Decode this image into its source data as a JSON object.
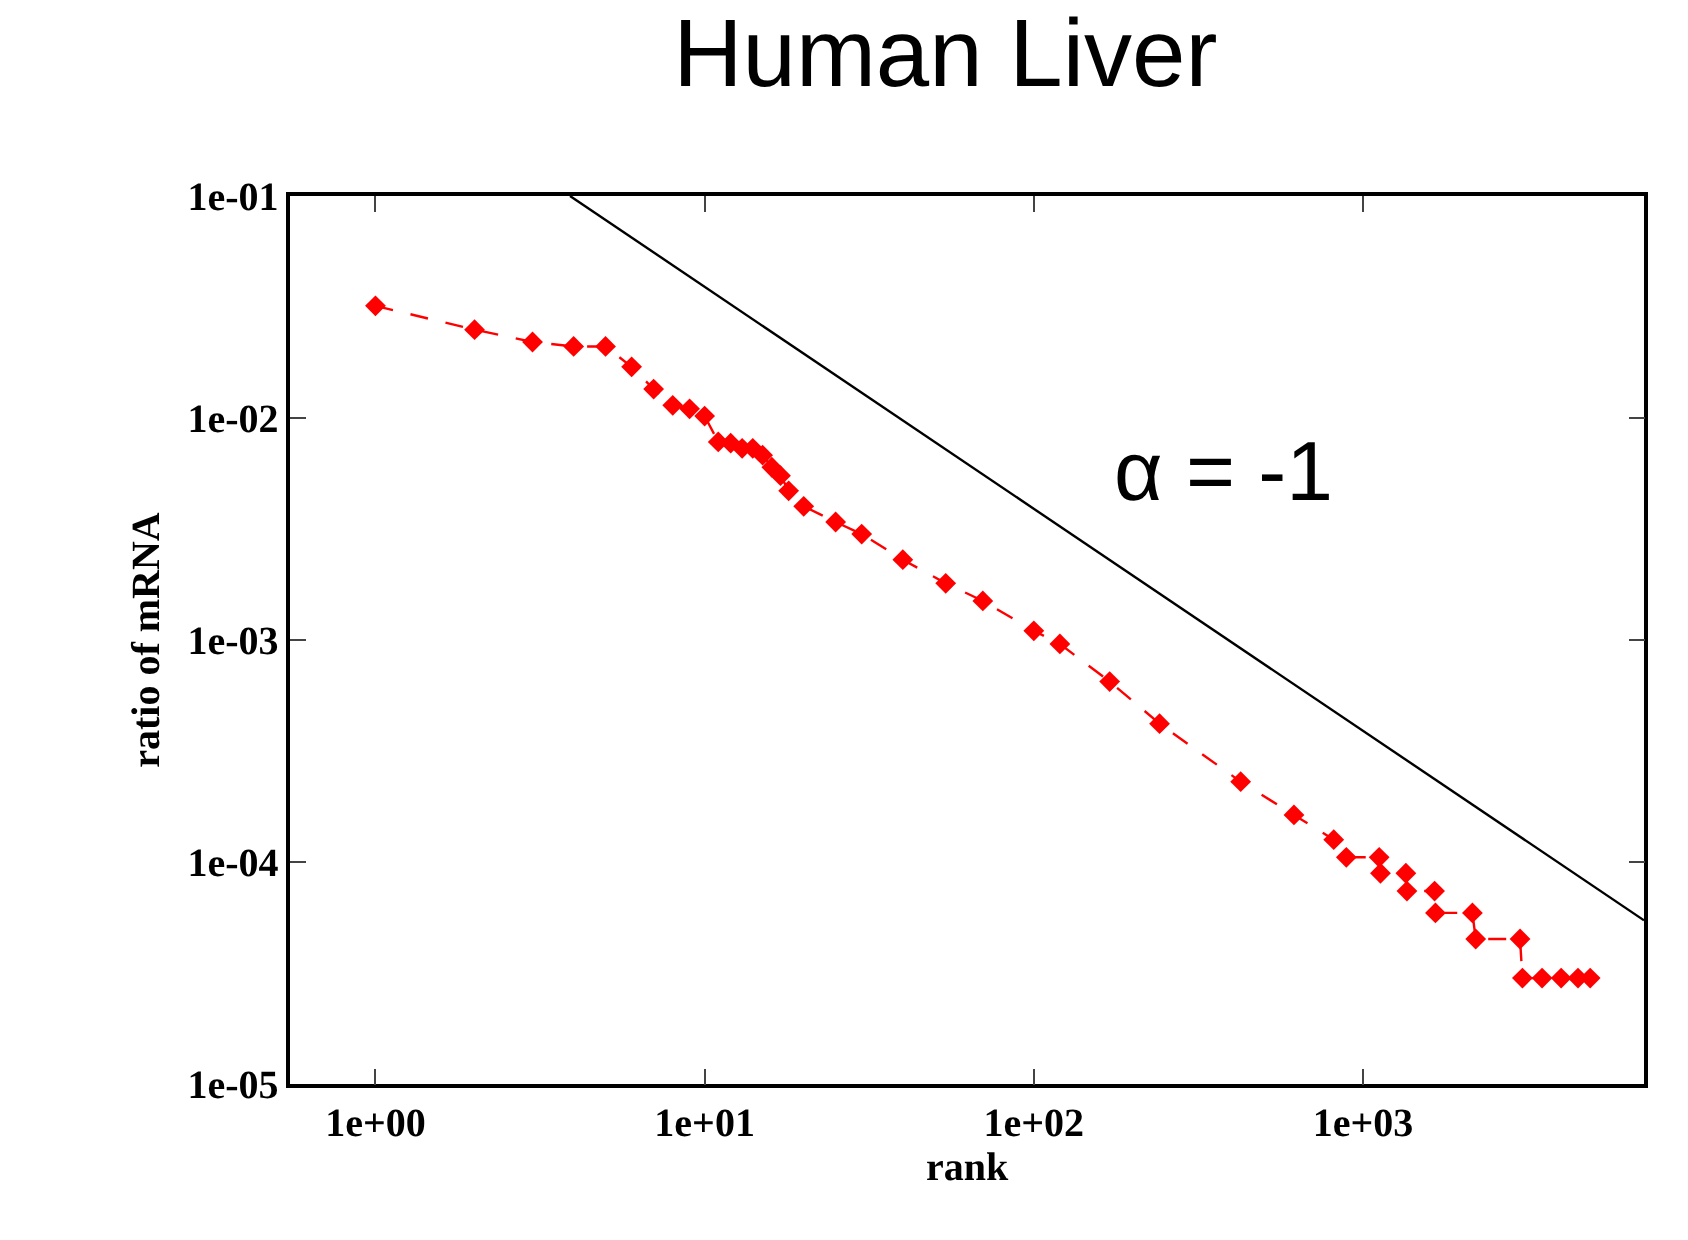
{
  "chart_data": {
    "type": "line",
    "title": "Human Liver",
    "xlabel": "rank",
    "ylabel": "ratio of mRNA",
    "log": "xy",
    "legend": false,
    "xlim": [
      0.55,
      7140
    ],
    "xticks": [
      {
        "value": 1,
        "label": "1e+00"
      },
      {
        "value": 10,
        "label": "1e+01"
      },
      {
        "value": 100,
        "label": "1e+02"
      },
      {
        "value": 1000,
        "label": "1e+03"
      }
    ],
    "ylim": [
      1e-05,
      0.1
    ],
    "yticks": [
      {
        "value": 1e-05,
        "label": "1e-05"
      },
      {
        "value": 0.0001,
        "label": "1e-04"
      },
      {
        "value": 0.001,
        "label": "1e-03"
      },
      {
        "value": 0.01,
        "label": "1e-02"
      },
      {
        "value": 0.1,
        "label": "1e-01"
      }
    ],
    "annotations": [
      "α = -1"
    ],
    "series": [
      {
        "color": "#ff0000",
        "marker": "diamond",
        "line_style": "dashed",
        "x": [
          1,
          2,
          3,
          4,
          5,
          6,
          7,
          8,
          9,
          10,
          11,
          12,
          13,
          14,
          15,
          16,
          17,
          18,
          20,
          25,
          30,
          40,
          54,
          70,
          100,
          120,
          170,
          241,
          425,
          617,
          815,
          890,
          1120,
          1130,
          1350,
          1360,
          1650,
          1660,
          2150,
          2200,
          3000,
          3050,
          3500,
          4000,
          4500,
          4900
        ],
        "values": [
          0.032,
          0.025,
          0.022,
          0.021,
          0.021,
          0.017,
          0.0135,
          0.0114,
          0.011,
          0.0102,
          0.0078,
          0.0077,
          0.0073,
          0.0073,
          0.0068,
          0.006,
          0.0055,
          0.0047,
          0.004,
          0.0034,
          0.003,
          0.0023,
          0.0018,
          0.0015,
          0.0011,
          0.00096,
          0.00065,
          0.00042,
          0.00023,
          0.000163,
          0.000126,
          0.000105,
          0.000105,
          8.9e-05,
          8.9e-05,
          7.4e-05,
          7.4e-05,
          5.9e-05,
          5.9e-05,
          4.5e-05,
          4.5e-05,
          3e-05,
          3e-05,
          3e-05,
          3e-05,
          3e-05
        ]
      },
      {
        "color": "#000000",
        "marker": "none",
        "line_style": "solid",
        "x": [
          3.9,
          7140
        ],
        "values": [
          0.1,
          5.46e-05
        ]
      }
    ]
  }
}
